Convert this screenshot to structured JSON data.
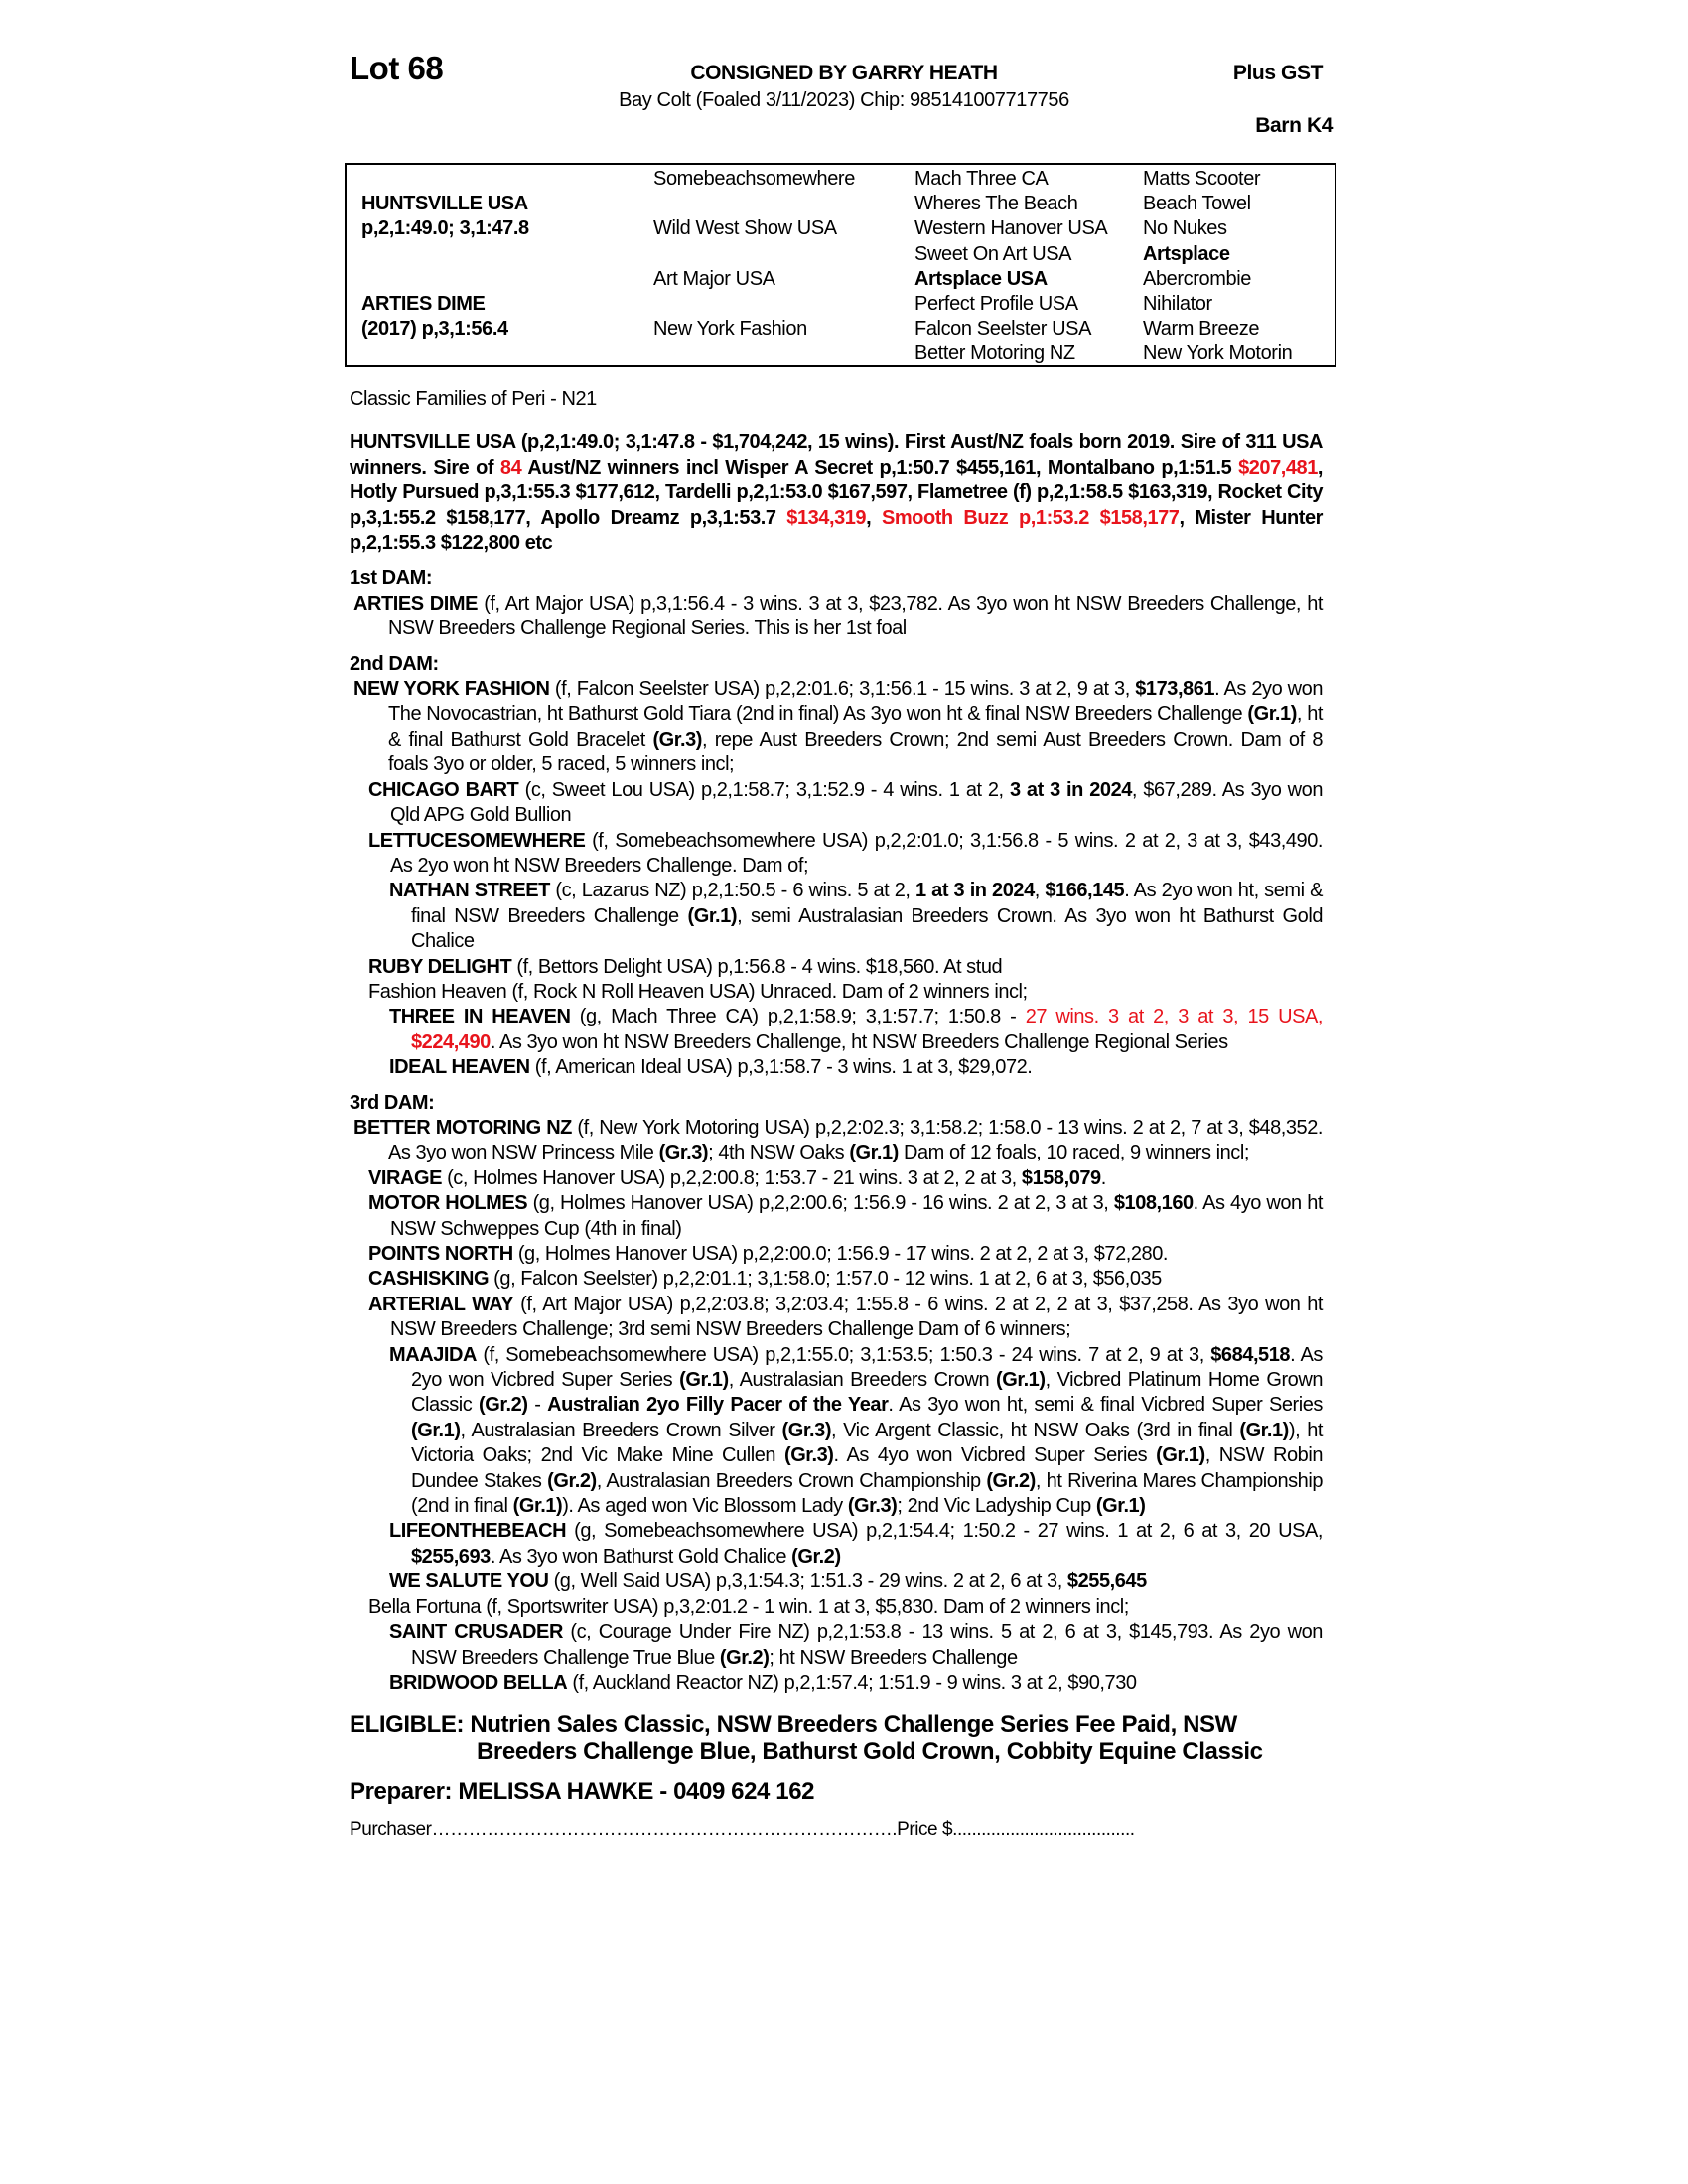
{
  "header": {
    "lot": "Lot 68",
    "consigned": "CONSIGNED BY GARRY HEATH",
    "description": "Bay Colt (Foaled 3/11/2023) Chip: 985141007717756",
    "gst": "Plus GST",
    "barn": "Barn K4"
  },
  "pedigree": {
    "sire": [
      "HUNTSVILLE USA",
      "p,2,1:49.0; 3,1:47.8"
    ],
    "dam": [
      "ARTIES DIME",
      "(2017) p,3,1:56.4"
    ],
    "col2": [
      "Somebeachsomewhere",
      "Wild West Show USA",
      "Art Major USA",
      "New York Fashion"
    ],
    "col3": [
      {
        "t": "Mach Three CA"
      },
      {
        "t": "Wheres The Beach"
      },
      {
        "t": "Western Hanover USA"
      },
      {
        "t": "Sweet On Art USA"
      },
      {
        "t": "Artsplace USA",
        "b": true
      },
      {
        "t": "Perfect Profile USA"
      },
      {
        "t": "Falcon Seelster USA"
      },
      {
        "t": "Better Motoring NZ"
      }
    ],
    "col4": [
      {
        "t": "Matts Scooter"
      },
      {
        "t": "Beach Towel"
      },
      {
        "t": "No Nukes"
      },
      {
        "t": "Artsplace",
        "b": true
      },
      {
        "t": "Abercrombie"
      },
      {
        "t": "Nihilator"
      },
      {
        "t": "Warm Breeze"
      },
      {
        "t": "New York Motorin"
      }
    ]
  },
  "family": "Classic Families of Peri - N21",
  "sire_summary": [
    {
      "t": "HUNTSVILLE USA (p,2,1:49.0; 3,1:47.8 - $1,704,242, 15 wins).  First Aust/NZ foals born 2019. Sire of 311 USA winners. Sire of "
    },
    {
      "t": "84",
      "r": true
    },
    {
      "t": " Aust/NZ winners incl Wisper A Secret p,1:50.7 $455,161, Montalbano p,1:51.5 "
    },
    {
      "t": "$207,481",
      "r": true
    },
    {
      "t": ", Hotly Pursued p,3,1:55.3 $177,612, Tardelli p,2,1:53.0 $167,597, Flametree (f) p,2,1:58.5 $163,319, Rocket City p,3,1:55.2 $158,177, Apollo Dreamz p,3,1:53.7 "
    },
    {
      "t": "$134,319",
      "r": true
    },
    {
      "t": ", "
    },
    {
      "t": "Smooth Buzz p,1:53.2 $158,177",
      "r": true
    },
    {
      "t": ", Mister Hunter p,2,1:55.3 $122,800 etc"
    }
  ],
  "dams": [
    {
      "heading": "1st DAM:",
      "entries": [
        {
          "level": 0,
          "segs": [
            {
              "t": "ARTIES DIME",
              "b": true
            },
            {
              "t": " (f, Art Major USA) p,3,1:56.4 - 3 wins. 3 at 3, $23,782. As 3yo won ht NSW Breeders Challenge, ht NSW Breeders Challenge Regional Series. This is her 1st foal"
            }
          ]
        }
      ]
    },
    {
      "heading": "2nd DAM:",
      "entries": [
        {
          "level": 0,
          "segs": [
            {
              "t": "NEW YORK FASHION",
              "b": true
            },
            {
              "t": " (f, Falcon Seelster USA) p,2,2:01.6; 3,1:56.1 - 15 wins. 3 at 2, 9 at 3, "
            },
            {
              "t": "$173,861",
              "b": true
            },
            {
              "t": ". As 2yo won The Novocastrian, ht Bathurst Gold Tiara (2nd in final) As 3yo won ht & final NSW Breeders Challenge "
            },
            {
              "t": "(Gr.1)",
              "b": true
            },
            {
              "t": ", ht & final Bathurst Gold Bracelet "
            },
            {
              "t": "(Gr.3)",
              "b": true
            },
            {
              "t": ", repe Aust Breeders Crown; 2nd semi Aust Breeders Crown. Dam of 8 foals 3yo or older, 5 raced, 5 winners incl;"
            }
          ]
        },
        {
          "level": 1,
          "segs": [
            {
              "t": "CHICAGO BART",
              "b": true
            },
            {
              "t": " (c, Sweet Lou USA) p,2,1:58.7; 3,1:52.9 - 4 wins. 1 at 2, "
            },
            {
              "t": "3 at 3 in 2024",
              "b": true
            },
            {
              "t": ", $67,289. As 3yo won Qld APG Gold Bullion"
            }
          ]
        },
        {
          "level": 1,
          "segs": [
            {
              "t": "LETTUCESOMEWHERE",
              "b": true
            },
            {
              "t": " (f, Somebeachsomewhere USA) p,2,2:01.0; 3,1:56.8 - 5 wins. 2 at 2, 3 at 3, $43,490. As 2yo won ht NSW Breeders Challenge. Dam of;"
            }
          ]
        },
        {
          "level": 2,
          "segs": [
            {
              "t": "NATHAN STREET",
              "b": true
            },
            {
              "t": " (c, Lazarus NZ) p,2,1:50.5 - 6 wins. 5 at 2, "
            },
            {
              "t": "1 at 3 in 2024",
              "b": true
            },
            {
              "t": ", "
            },
            {
              "t": "$166,145",
              "b": true
            },
            {
              "t": ". As 2yo won ht, semi & final NSW Breeders Challenge "
            },
            {
              "t": "(Gr.1)",
              "b": true
            },
            {
              "t": ", semi Australasian Breeders Crown. As 3yo won ht Bathurst Gold Chalice"
            }
          ]
        },
        {
          "level": 1,
          "segs": [
            {
              "t": "RUBY DELIGHT",
              "b": true
            },
            {
              "t": " (f, Bettors Delight USA) p,1:56.8 - 4 wins. $18,560. At stud"
            }
          ]
        },
        {
          "level": 1,
          "segs": [
            {
              "t": "Fashion Heaven (f, Rock N Roll Heaven USA) Unraced. Dam of 2 winners incl;"
            }
          ]
        },
        {
          "level": 2,
          "segs": [
            {
              "t": "THREE IN HEAVEN",
              "b": true
            },
            {
              "t": " (g, Mach Three CA) p,2,1:58.9; 3,1:57.7; 1:50.8 - "
            },
            {
              "t": "27 wins. 3 at 2, 3 at 3, 15 USA, ",
              "r": true
            },
            {
              "t": "$224,490",
              "r": true,
              "b": true
            },
            {
              "t": ". As 3yo won ht NSW Breeders Challenge, ht NSW Breeders Challenge Regional Series"
            }
          ]
        },
        {
          "level": 2,
          "segs": [
            {
              "t": "IDEAL HEAVEN",
              "b": true
            },
            {
              "t": " (f, American Ideal USA) p,3,1:58.7 - 3 wins. 1 at 3, $29,072."
            }
          ]
        }
      ]
    },
    {
      "heading": "3rd DAM:",
      "entries": [
        {
          "level": 0,
          "segs": [
            {
              "t": "BETTER MOTORING NZ",
              "b": true
            },
            {
              "t": " (f, New York Motoring USA) p,2,2:02.3; 3,1:58.2; 1:58.0 - 13 wins. 2 at 2, 7 at 3, $48,352. As 3yo won NSW Princess Mile "
            },
            {
              "t": "(Gr.3)",
              "b": true
            },
            {
              "t": "; 4th NSW Oaks "
            },
            {
              "t": "(Gr.1)",
              "b": true
            },
            {
              "t": " Dam of 12 foals, 10 raced, 9 winners incl;"
            }
          ]
        },
        {
          "level": 1,
          "segs": [
            {
              "t": "VIRAGE",
              "b": true
            },
            {
              "t": " (c, Holmes Hanover USA) p,2,2:00.8; 1:53.7 - 21 wins. 3 at 2, 2 at 3, "
            },
            {
              "t": "$158,079",
              "b": true
            },
            {
              "t": "."
            }
          ]
        },
        {
          "level": 1,
          "segs": [
            {
              "t": "MOTOR HOLMES",
              "b": true
            },
            {
              "t": " (g, Holmes Hanover USA) p,2,2:00.6; 1:56.9 - 16 wins. 2 at 2, 3 at 3, "
            },
            {
              "t": "$108,160",
              "b": true
            },
            {
              "t": ". As 4yo won ht NSW Schweppes Cup (4th in final)"
            }
          ]
        },
        {
          "level": 1,
          "segs": [
            {
              "t": "POINTS NORTH",
              "b": true
            },
            {
              "t": " (g, Holmes Hanover USA) p,2,2:00.0; 1:56.9 - 17 wins. 2 at 2, 2 at 3, $72,280."
            }
          ]
        },
        {
          "level": 1,
          "segs": [
            {
              "t": "CASHISKING",
              "b": true
            },
            {
              "t": " (g, Falcon Seelster) p,2,2:01.1; 3,1:58.0; 1:57.0 - 12 wins. 1 at 2, 6 at 3, $56,035"
            }
          ]
        },
        {
          "level": 1,
          "segs": [
            {
              "t": "ARTERIAL WAY",
              "b": true
            },
            {
              "t": " (f, Art Major USA) p,2,2:03.8; 3,2:03.4; 1:55.8 - 6 wins. 2 at 2, 2 at 3, $37,258. As 3yo won ht NSW Breeders Challenge; 3rd semi NSW Breeders Challenge Dam of 6 winners;"
            }
          ]
        },
        {
          "level": 2,
          "segs": [
            {
              "t": "MAAJIDA",
              "b": true
            },
            {
              "t": " (f, Somebeachsomewhere USA) p,2,1:55.0; 3,1:53.5; 1:50.3 - 24 wins. 7 at 2, 9 at 3, "
            },
            {
              "t": "$684,518",
              "b": true
            },
            {
              "t": ". As 2yo won Vicbred Super Series "
            },
            {
              "t": "(Gr.1)",
              "b": true
            },
            {
              "t": ", Australasian Breeders Crown "
            },
            {
              "t": "(Gr.1)",
              "b": true
            },
            {
              "t": ", Vicbred Platinum Home Grown Classic "
            },
            {
              "t": "(Gr.2)",
              "b": true
            },
            {
              "t": " - "
            },
            {
              "t": "Australian 2yo Filly Pacer of the Year",
              "b": true
            },
            {
              "t": ". As 3yo won ht, semi & final Vicbred Super Series "
            },
            {
              "t": "(Gr.1)",
              "b": true
            },
            {
              "t": ", Australasian Breeders Crown Silver "
            },
            {
              "t": "(Gr.3)",
              "b": true
            },
            {
              "t": ", Vic Argent Classic, ht NSW Oaks (3rd in final "
            },
            {
              "t": "(Gr.1)",
              "b": true
            },
            {
              "t": "), ht Victoria Oaks; 2nd Vic Make Mine Cullen "
            },
            {
              "t": "(Gr.3)",
              "b": true
            },
            {
              "t": ". As 4yo won Vicbred Super Series "
            },
            {
              "t": "(Gr.1)",
              "b": true
            },
            {
              "t": ", NSW Robin Dundee Stakes "
            },
            {
              "t": "(Gr.2)",
              "b": true
            },
            {
              "t": ", Australasian Breeders Crown Championship "
            },
            {
              "t": "(Gr.2)",
              "b": true
            },
            {
              "t": ", ht Riverina Mares Championship (2nd in final "
            },
            {
              "t": "(Gr.1)",
              "b": true
            },
            {
              "t": "). As aged won Vic Blossom Lady "
            },
            {
              "t": "(Gr.3)",
              "b": true
            },
            {
              "t": "; 2nd Vic Ladyship Cup "
            },
            {
              "t": "(Gr.1)",
              "b": true
            }
          ]
        },
        {
          "level": 2,
          "segs": [
            {
              "t": "LIFEONTHEBEACH",
              "b": true
            },
            {
              "t": " (g, Somebeachsomewhere USA) p,2,1:54.4; 1:50.2 - 27 wins. 1 at 2, 6 at 3, 20 USA, "
            },
            {
              "t": "$255,693",
              "b": true
            },
            {
              "t": ". As 3yo won Bathurst Gold Chalice "
            },
            {
              "t": "(Gr.2)",
              "b": true
            }
          ]
        },
        {
          "level": 2,
          "segs": [
            {
              "t": "WE SALUTE YOU",
              "b": true
            },
            {
              "t": " (g, Well Said USA) p,3,1:54.3; 1:51.3 - 29 wins. 2 at 2, 6 at 3, "
            },
            {
              "t": "$255,645",
              "b": true
            }
          ]
        },
        {
          "level": 1,
          "segs": [
            {
              "t": "Bella Fortuna (f, Sportswriter USA) p,3,2:01.2 - 1 win. 1 at 3, $5,830. Dam of 2 winners incl;"
            }
          ]
        },
        {
          "level": 2,
          "segs": [
            {
              "t": "SAINT CRUSADER",
              "b": true
            },
            {
              "t": " (c, Courage Under Fire NZ) p,2,1:53.8 - 13 wins. 5 at 2, 6 at 3, $145,793. As 2yo won NSW Breeders Challenge True Blue "
            },
            {
              "t": "(Gr.2)",
              "b": true
            },
            {
              "t": "; ht NSW Breeders Challenge"
            }
          ]
        },
        {
          "level": 2,
          "segs": [
            {
              "t": "BRIDWOOD BELLA",
              "b": true
            },
            {
              "t": " (f, Auckland Reactor NZ) p,2,1:57.4; 1:51.9 - 9 wins. 3 at 2, $90,730"
            }
          ]
        }
      ]
    }
  ],
  "eligible": "ELIGIBLE: Nutrien Sales Classic, NSW Breeders Challenge Series Fee Paid, NSW Breeders Challenge Blue, Bathurst Gold Crown, Cobbity Equine Classic",
  "preparer": "Preparer: MELISSA HAWKE - 0409 624 162",
  "purchaser": {
    "label": "Purchaser",
    "price_label": "Price $"
  },
  "colors": {
    "highlight": "#e8141c",
    "text": "#000000"
  }
}
